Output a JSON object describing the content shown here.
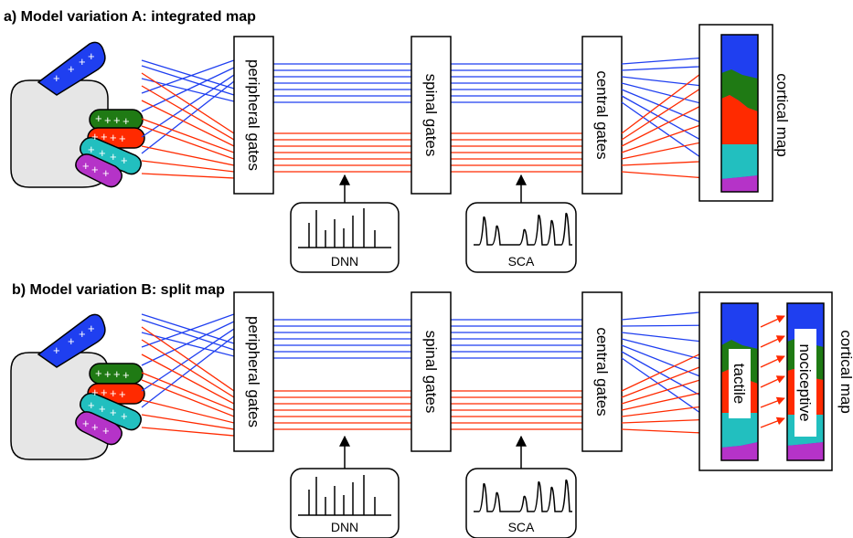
{
  "colors": {
    "blue": "#1f3ff0",
    "red": "#ff2a00",
    "green": "#1f7a14",
    "cyan": "#22bfbf",
    "purple": "#b533c8",
    "hand": "#e6e6e6"
  },
  "panels": [
    {
      "title": "a) Model variation A: integrated map",
      "gates": {
        "peripheral": "peripheral gates",
        "spinal": "spinal gates",
        "central": "central gates"
      },
      "inputs": {
        "dnn": "DNN",
        "sca": "SCA"
      },
      "cortical_label": "cortical map"
    },
    {
      "title": "b) Model variation B: split map",
      "gates": {
        "peripheral": "peripheral gates",
        "spinal": "spinal gates",
        "central": "central gates"
      },
      "inputs": {
        "dnn": "DNN",
        "sca": "SCA"
      },
      "cortical_label": "cortical map",
      "map_labels": {
        "tactile": "tactile",
        "nociceptive": "nociceptive"
      }
    }
  ]
}
